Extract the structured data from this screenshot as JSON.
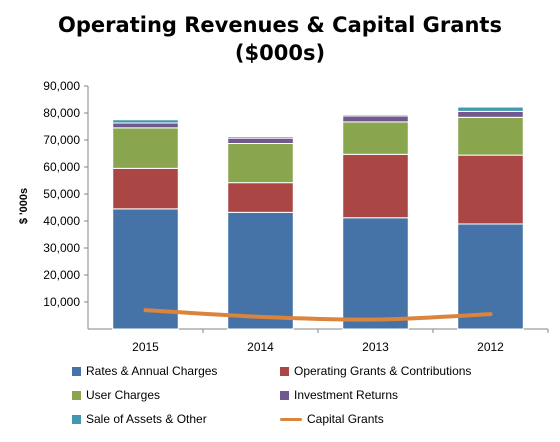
{
  "chart_data": {
    "type": "bar",
    "stacked": true,
    "title": "Operating Revenues & Capital Grants",
    "subtitle": "($000s)",
    "ylabel": "$ '000s",
    "xlabel": "",
    "ylim": [
      0,
      90000
    ],
    "yticks": [
      "90,000",
      "80,000",
      "70,000",
      "60,000",
      "50,000",
      "40,000",
      "30,000",
      "20,000",
      "10,000"
    ],
    "ytick_values": [
      90000,
      80000,
      70000,
      60000,
      50000,
      40000,
      30000,
      20000,
      10000
    ],
    "categories": [
      "2015",
      "2014",
      "2013",
      "2012"
    ],
    "grid": false,
    "legend_position": "bottom",
    "series": [
      {
        "name": "Rates & Annual Charges",
        "color": "#4572A7",
        "values": [
          44500,
          43200,
          41200,
          38900
        ]
      },
      {
        "name": "Operating Grants & Contributions",
        "color": "#AA4643",
        "values": [
          15000,
          11000,
          23500,
          25500
        ]
      },
      {
        "name": "User Charges",
        "color": "#89A54E",
        "values": [
          15000,
          14500,
          12000,
          14000
        ]
      },
      {
        "name": "Investment Returns",
        "color": "#71588F",
        "values": [
          1800,
          2000,
          2200,
          2200
        ]
      },
      {
        "name": "Sale of Assets & Other",
        "color": "#4198AF",
        "values": [
          1200,
          600,
          500,
          1600
        ]
      }
    ],
    "line_series": {
      "name": "Capital Grants",
      "color": "#DB843D",
      "values": [
        7000,
        4500,
        3500,
        5500
      ]
    }
  }
}
